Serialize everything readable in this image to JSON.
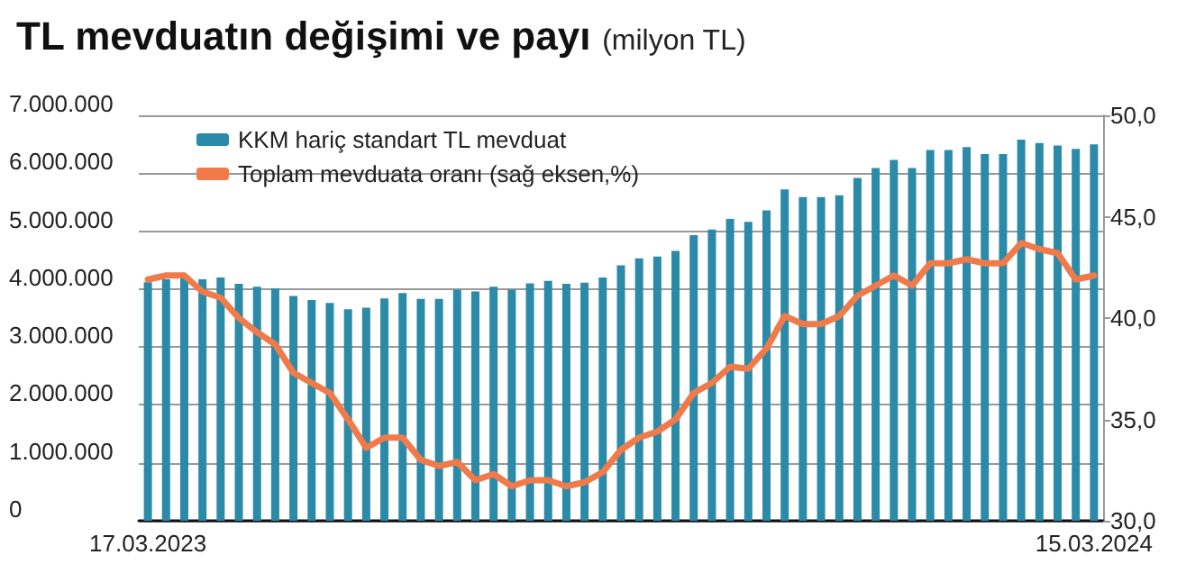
{
  "chart_data": {
    "type": "bar",
    "title": "TL mevduatın değişimi ve payı",
    "subtitle": "(milyon TL)",
    "categories": [
      "17.03.2023",
      null,
      null,
      null,
      null,
      null,
      null,
      null,
      null,
      null,
      null,
      null,
      null,
      null,
      null,
      null,
      null,
      null,
      null,
      null,
      null,
      null,
      null,
      null,
      null,
      null,
      null,
      null,
      null,
      null,
      null,
      null,
      null,
      null,
      null,
      null,
      null,
      null,
      null,
      null,
      null,
      null,
      null,
      null,
      null,
      null,
      null,
      null,
      null,
      null,
      null,
      null,
      "15.03.2024"
    ],
    "series": [
      {
        "name": "KKM hariç standart TL mevduat",
        "color": "#2a8aa8",
        "values": [
          4120000,
          4170000,
          4200000,
          4170000,
          4200000,
          4090000,
          4040000,
          4010000,
          3880000,
          3810000,
          3760000,
          3650000,
          3680000,
          3840000,
          3930000,
          3830000,
          3830000,
          3990000,
          3960000,
          4040000,
          3990000,
          4100000,
          4140000,
          4090000,
          4110000,
          4200000,
          4410000,
          4530000,
          4560000,
          4660000,
          4930000,
          5030000,
          5210000,
          5160000,
          5360000,
          5720000,
          5590000,
          5590000,
          5620000,
          5920000,
          6090000,
          6230000,
          6090000,
          6400000,
          6400000,
          6450000,
          6330000,
          6330000,
          6580000,
          6520000,
          6480000,
          6420000,
          6500000
        ]
      },
      {
        "name": "Toplam mevduata oranı (sağ eksen,%)",
        "type": "line",
        "axis": "y2",
        "color": "#f07a4a",
        "values": [
          41.9,
          42.1,
          42.1,
          41.3,
          41.0,
          40.0,
          39.3,
          38.7,
          37.3,
          36.8,
          36.3,
          35.0,
          33.6,
          34.1,
          34.1,
          33.0,
          32.7,
          32.9,
          32.0,
          32.3,
          31.7,
          32.0,
          32.0,
          31.7,
          31.9,
          32.4,
          33.5,
          34.1,
          34.4,
          35.0,
          36.3,
          36.8,
          37.6,
          37.5,
          38.5,
          40.1,
          39.7,
          39.7,
          40.1,
          41.1,
          41.6,
          42.1,
          41.6,
          42.7,
          42.7,
          42.9,
          42.7,
          42.7,
          43.7,
          43.4,
          43.2,
          41.9,
          42.1
        ]
      }
    ],
    "ylim": [
      0,
      7000000
    ],
    "yticks": [
      {
        "value": 0,
        "label": "0"
      },
      {
        "value": 1000000,
        "label": "1.000.000"
      },
      {
        "value": 2000000,
        "label": "2.000.000"
      },
      {
        "value": 3000000,
        "label": "3.000.000"
      },
      {
        "value": 4000000,
        "label": "4.000.000"
      },
      {
        "value": 5000000,
        "label": "5.000.000"
      },
      {
        "value": 6000000,
        "label": "6.000.000"
      },
      {
        "value": 7000000,
        "label": "7.000.000"
      }
    ],
    "y2lim": [
      30,
      50
    ],
    "y2ticks": [
      {
        "value": 30,
        "label": "30,0"
      },
      {
        "value": 35,
        "label": "35,0"
      },
      {
        "value": 40,
        "label": "40,0"
      },
      {
        "value": 45,
        "label": "45,0"
      },
      {
        "value": 50,
        "label": "50,0"
      }
    ],
    "grid": "y",
    "legend": "top left",
    "marker": "none",
    "line_style": "solid"
  }
}
